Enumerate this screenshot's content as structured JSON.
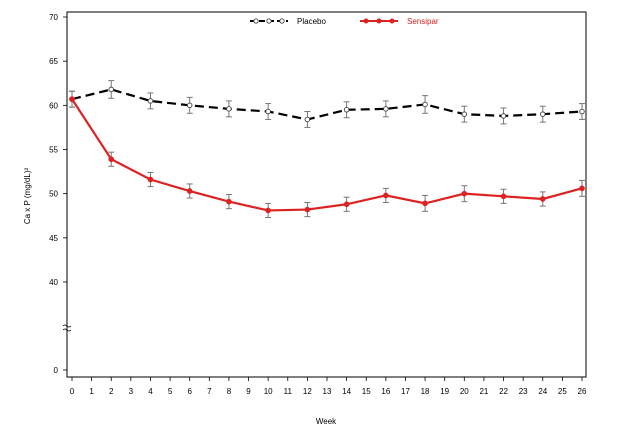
{
  "chart_data": {
    "type": "line",
    "xlabel": "Week",
    "ylabel": "Ca x P (mg/dL)²",
    "xlim": [
      0,
      26
    ],
    "ylim": [
      0,
      70
    ],
    "y_axis_break": [
      0,
      35
    ],
    "x_ticks": [
      "0",
      "1",
      "2",
      "3",
      "4",
      "5",
      "6",
      "7",
      "8",
      "9",
      "10",
      "11",
      "12",
      "13",
      "14",
      "15",
      "16",
      "17",
      "18",
      "19",
      "20",
      "21",
      "22",
      "23",
      "24",
      "25",
      "26"
    ],
    "y_ticks": [
      "0",
      "40",
      "45",
      "50",
      "55",
      "60",
      "65",
      "70"
    ],
    "legend_position": "top-center",
    "series": [
      {
        "name": "Placebo",
        "color": "#000000",
        "line_style": "dashed",
        "marker": "open-circle",
        "x": [
          0,
          2,
          4,
          6,
          8,
          10,
          12,
          14,
          16,
          18,
          20,
          22,
          24,
          26
        ],
        "values": [
          60.7,
          61.8,
          60.5,
          60.0,
          59.6,
          59.3,
          58.4,
          59.5,
          59.6,
          60.1,
          59.0,
          58.8,
          59.0,
          59.3
        ],
        "error": [
          0.9,
          1.0,
          0.9,
          0.9,
          0.9,
          0.9,
          0.9,
          0.9,
          0.9,
          1.0,
          0.9,
          0.9,
          0.9,
          0.9
        ]
      },
      {
        "name": "Sensipar",
        "color": "#dd2222",
        "line_style": "solid",
        "marker": "filled-circle",
        "x": [
          0,
          2,
          4,
          6,
          8,
          10,
          12,
          14,
          16,
          18,
          20,
          22,
          24,
          26
        ],
        "values": [
          60.7,
          53.9,
          51.6,
          50.3,
          49.1,
          48.1,
          48.2,
          48.8,
          49.8,
          48.9,
          50.0,
          49.7,
          49.4,
          50.6
        ],
        "error": [
          0.9,
          0.8,
          0.8,
          0.8,
          0.8,
          0.8,
          0.8,
          0.8,
          0.8,
          0.9,
          0.9,
          0.8,
          0.8,
          0.9
        ]
      }
    ]
  }
}
